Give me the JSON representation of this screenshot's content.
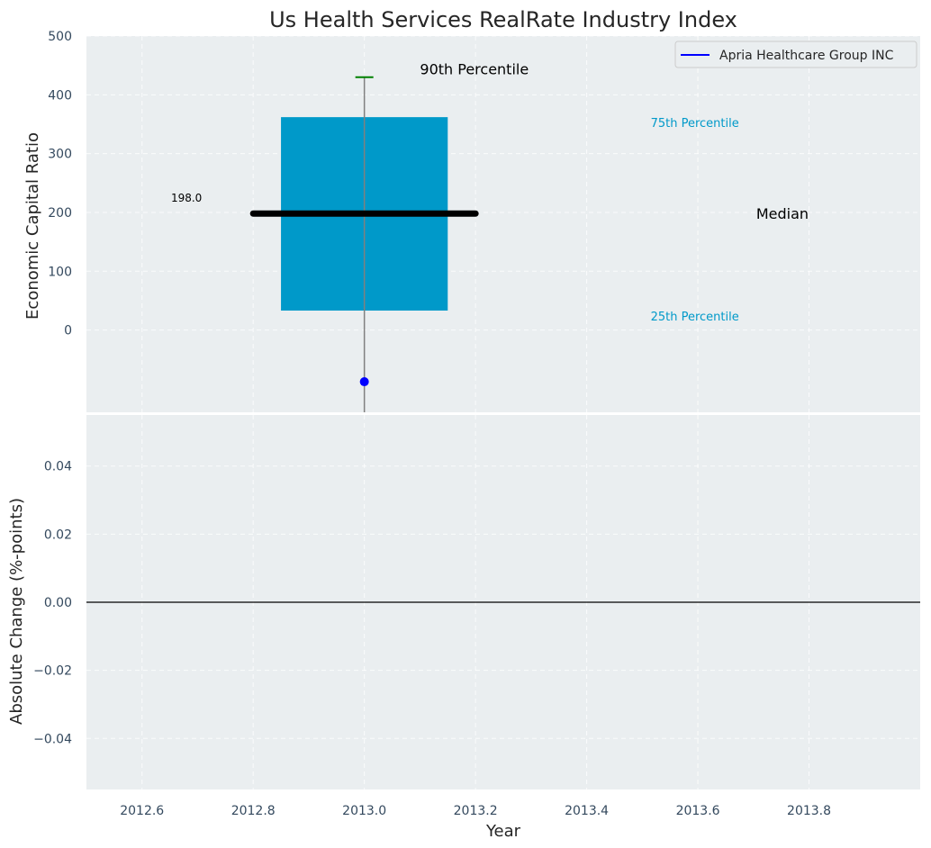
{
  "chart_data": [
    {
      "type": "box",
      "title": "Us Health Services RealRate Industry Index",
      "ylabel": "Economic Capital Ratio",
      "ylim": [
        -140,
        500
      ],
      "yticks": [
        "0",
        "100",
        "200",
        "300",
        "400",
        "500"
      ],
      "ytick_values": [
        0,
        100,
        200,
        300,
        400,
        500
      ],
      "grid": true,
      "legend": {
        "placement": "top-right",
        "entries": [
          {
            "name": "Apria Healthcare Group INC",
            "color": "#0000ff"
          }
        ]
      },
      "box": {
        "x": 2013.0,
        "p25": 33,
        "median": 198,
        "p75": 362,
        "p90": 430
      },
      "company_point": {
        "x": 2013.0,
        "y": -88,
        "color": "#0000ff"
      },
      "annotations": {
        "median_value": "198.0",
        "p90": "90th Percentile",
        "p75": "75th Percentile",
        "median": "Median",
        "p25": "25th Percentile"
      },
      "colors": {
        "box": "#0099c9",
        "median_line": "#000000",
        "whisker": "#808080",
        "p90_cap": "#008000",
        "background": "#eaeef0"
      }
    },
    {
      "type": "line",
      "ylabel": "Absolute Change (%-points)",
      "xlabel": "Year",
      "xlim": [
        2012.5,
        2014.0
      ],
      "ylim": [
        -0.055,
        0.055
      ],
      "xticks": [
        "2012.6",
        "2012.8",
        "2013.0",
        "2013.2",
        "2013.4",
        "2013.6",
        "2013.8"
      ],
      "xtick_values": [
        2012.6,
        2012.8,
        2013.0,
        2013.2,
        2013.4,
        2013.6,
        2013.8
      ],
      "yticks": [
        "0.04",
        "0.02",
        "0.00",
        "−0.02",
        "−0.04"
      ],
      "ytick_values": [
        0.04,
        0.02,
        0.0,
        -0.02,
        -0.04
      ],
      "reference_line": 0.0,
      "grid": true
    }
  ]
}
